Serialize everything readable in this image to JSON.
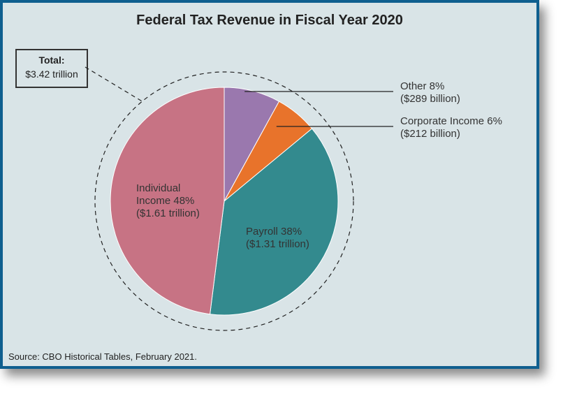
{
  "chart_data": {
    "type": "pie",
    "title": "Federal Tax Revenue in Fiscal Year 2020",
    "total_label": "Total:",
    "total_value": "$3.42 trillion",
    "source": "Source: CBO Historical Tables, February 2021.",
    "slices": [
      {
        "name": "Other",
        "percent": 8,
        "value_billions": 289,
        "lines": [
          "Other 8%",
          "($289 billion)"
        ],
        "color": "#9a78ae"
      },
      {
        "name": "Corporate Income",
        "percent": 6,
        "value_billions": 212,
        "lines": [
          "Corporate Income 6%",
          "($212 billion)"
        ],
        "color": "#e8732b"
      },
      {
        "name": "Payroll",
        "percent": 38,
        "value_billions": 1310,
        "lines": [
          "Payroll 38%",
          "($1.31 trillion)"
        ],
        "color": "#338a8e"
      },
      {
        "name": "Individual Income",
        "percent": 48,
        "value_billions": 1610,
        "lines": [
          "Individual",
          "Income 48%",
          "($1.61 trillion)"
        ],
        "color": "#c77384"
      }
    ]
  }
}
